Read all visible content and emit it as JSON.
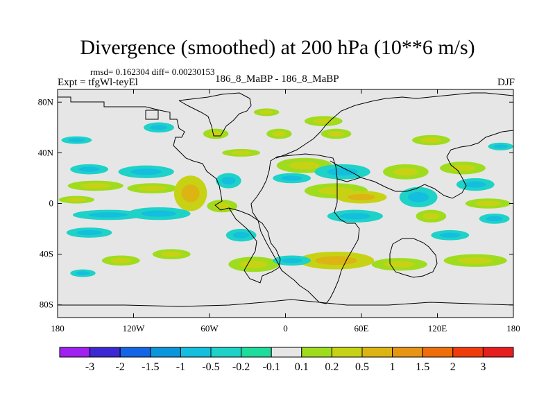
{
  "title": "Divergence (smoothed) at 200 hPa (10**6 m/s)",
  "stats_line": "rmsd= 0.162304 diff= 0.00230153",
  "expt_line": "Expt = tfgWl-teyEl",
  "center_label": "186_8_MaBP - 186_8_MaBP",
  "season": "DJF",
  "chart_data": {
    "type": "heatmap",
    "title": "Divergence (smoothed) at 200 hPa (10**6 m/s)",
    "variable": "Divergence",
    "units": "10**6 m/s",
    "level": "200 hPa",
    "season": "DJF",
    "x_range": [
      -180,
      180
    ],
    "y_range": [
      -90,
      90
    ],
    "x_ticks": [
      {
        "value": -180,
        "label": "180"
      },
      {
        "value": -120,
        "label": "120W"
      },
      {
        "value": -60,
        "label": "60W"
      },
      {
        "value": 0,
        "label": "0"
      },
      {
        "value": 60,
        "label": "60E"
      },
      {
        "value": 120,
        "label": "120E"
      },
      {
        "value": 180,
        "label": "180"
      }
    ],
    "y_ticks": [
      {
        "value": 80,
        "label": "80N"
      },
      {
        "value": 40,
        "label": "40N"
      },
      {
        "value": 0,
        "label": "0"
      },
      {
        "value": -40,
        "label": "40S"
      },
      {
        "value": -80,
        "label": "80S"
      }
    ],
    "background_color": "#e6e6e6",
    "colorbar": {
      "colors": [
        "#a020f0",
        "#3c28d2",
        "#1464e6",
        "#0a96dc",
        "#14bede",
        "#1ed2c8",
        "#1edc9c",
        "#e6e6e6",
        "#a0dc1e",
        "#c8d214",
        "#dcb414",
        "#e69614",
        "#f06e0a",
        "#f03c0a",
        "#e61e1e"
      ],
      "labels": [
        "-3",
        "-2",
        "-1.5",
        "-1",
        "-0.5",
        "-0.2",
        "-0.1",
        "0.1",
        "0.2",
        "0.5",
        "1",
        "1.5",
        "2",
        "3"
      ]
    },
    "anomaly_patches": [
      {
        "lon": -155,
        "lat": 27,
        "rlon": 15,
        "rlat": 4,
        "level": "negative"
      },
      {
        "lon": -150,
        "lat": 14,
        "rlon": 22,
        "rlat": 4,
        "level": "positive"
      },
      {
        "lon": -165,
        "lat": 3,
        "rlon": 14,
        "rlat": 3,
        "level": "positive"
      },
      {
        "lon": -140,
        "lat": -9,
        "rlon": 28,
        "rlat": 4,
        "level": "negative"
      },
      {
        "lon": -155,
        "lat": -23,
        "rlon": 18,
        "rlat": 4,
        "level": "negative"
      },
      {
        "lon": -110,
        "lat": 25,
        "rlon": 22,
        "rlat": 5,
        "level": "negative"
      },
      {
        "lon": -105,
        "lat": 12,
        "rlon": 20,
        "rlat": 4,
        "level": "positive"
      },
      {
        "lon": -100,
        "lat": -8,
        "rlon": 25,
        "rlat": 5,
        "level": "negative"
      },
      {
        "lon": -75,
        "lat": 8,
        "rlon": 13,
        "rlat": 14,
        "level": "strong_positive"
      },
      {
        "lon": -45,
        "lat": 18,
        "rlon": 10,
        "rlat": 6,
        "level": "negative"
      },
      {
        "lon": -50,
        "lat": -2,
        "rlon": 12,
        "rlat": 5,
        "level": "positive"
      },
      {
        "lon": -35,
        "lat": -25,
        "rlon": 12,
        "rlat": 5,
        "level": "negative"
      },
      {
        "lon": -25,
        "lat": -48,
        "rlon": 20,
        "rlat": 6,
        "level": "positive"
      },
      {
        "lon": -100,
        "lat": 60,
        "rlon": 12,
        "rlat": 4,
        "level": "negative"
      },
      {
        "lon": -55,
        "lat": 55,
        "rlon": 10,
        "rlat": 4,
        "level": "positive"
      },
      {
        "lon": -35,
        "lat": 40,
        "rlon": 15,
        "rlat": 3,
        "level": "positive"
      },
      {
        "lon": 15,
        "lat": 30,
        "rlon": 22,
        "rlat": 6,
        "level": "positive"
      },
      {
        "lon": 5,
        "lat": 20,
        "rlon": 15,
        "rlat": 4,
        "level": "negative"
      },
      {
        "lon": 45,
        "lat": 25,
        "rlon": 22,
        "rlat": 6,
        "level": "negative"
      },
      {
        "lon": 40,
        "lat": 10,
        "rlon": 25,
        "rlat": 6,
        "level": "positive"
      },
      {
        "lon": 60,
        "lat": 5,
        "rlon": 20,
        "rlat": 5,
        "level": "strong_positive"
      },
      {
        "lon": 55,
        "lat": -10,
        "rlon": 22,
        "rlat": 5,
        "level": "negative"
      },
      {
        "lon": 95,
        "lat": 25,
        "rlon": 18,
        "rlat": 6,
        "level": "positive"
      },
      {
        "lon": 105,
        "lat": 5,
        "rlon": 15,
        "rlat": 8,
        "level": "negative"
      },
      {
        "lon": 115,
        "lat": -10,
        "rlon": 12,
        "rlat": 5,
        "level": "positive"
      },
      {
        "lon": 140,
        "lat": 28,
        "rlon": 18,
        "rlat": 5,
        "level": "positive"
      },
      {
        "lon": 150,
        "lat": 15,
        "rlon": 15,
        "rlat": 5,
        "level": "negative"
      },
      {
        "lon": 160,
        "lat": 0,
        "rlon": 18,
        "rlat": 4,
        "level": "positive"
      },
      {
        "lon": 165,
        "lat": -12,
        "rlon": 12,
        "rlat": 4,
        "level": "negative"
      },
      {
        "lon": 130,
        "lat": -25,
        "rlon": 15,
        "rlat": 4,
        "level": "negative"
      },
      {
        "lon": 40,
        "lat": -45,
        "rlon": 30,
        "rlat": 7,
        "level": "strong_positive"
      },
      {
        "lon": 90,
        "lat": -48,
        "rlon": 22,
        "rlat": 5,
        "level": "positive"
      },
      {
        "lon": 5,
        "lat": -45,
        "rlon": 15,
        "rlat": 4,
        "level": "negative"
      },
      {
        "lon": 150,
        "lat": -45,
        "rlon": 25,
        "rlat": 5,
        "level": "positive"
      },
      {
        "lon": -130,
        "lat": -45,
        "rlon": 15,
        "rlat": 4,
        "level": "positive"
      },
      {
        "lon": -90,
        "lat": -40,
        "rlon": 15,
        "rlat": 4,
        "level": "positive"
      },
      {
        "lon": -160,
        "lat": -55,
        "rlon": 10,
        "rlat": 3,
        "level": "negative"
      },
      {
        "lon": 30,
        "lat": 65,
        "rlon": 15,
        "rlat": 4,
        "level": "positive"
      },
      {
        "lon": 40,
        "lat": 55,
        "rlon": 12,
        "rlat": 4,
        "level": "positive"
      },
      {
        "lon": 115,
        "lat": 50,
        "rlon": 15,
        "rlat": 4,
        "level": "positive"
      },
      {
        "lon": 170,
        "lat": 45,
        "rlon": 10,
        "rlat": 3,
        "level": "negative"
      },
      {
        "lon": -165,
        "lat": 50,
        "rlon": 12,
        "rlat": 3,
        "level": "negative"
      },
      {
        "lon": -5,
        "lat": 55,
        "rlon": 10,
        "rlat": 4,
        "level": "positive"
      },
      {
        "lon": -15,
        "lat": 72,
        "rlon": 10,
        "rlat": 3,
        "level": "positive"
      }
    ]
  }
}
